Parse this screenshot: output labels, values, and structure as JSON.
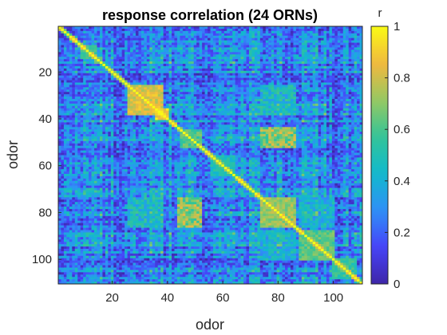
{
  "chart_data": {
    "type": "heatmap",
    "title": "response correlation (24 ORNs)",
    "xlabel": "odor",
    "ylabel": "odor",
    "n": 110,
    "x_ticks": [
      20,
      40,
      60,
      80,
      100
    ],
    "y_ticks": [
      20,
      40,
      60,
      80,
      100
    ],
    "colorbar": {
      "label": "r",
      "ticks": [
        0,
        0.2,
        0.4,
        0.6,
        0.8,
        1
      ],
      "range": [
        0,
        1
      ],
      "colormap": "parula",
      "colors": [
        "#3e26a8",
        "#4743f8",
        "#2f90f7",
        "#11b9cd",
        "#33c498",
        "#97c861",
        "#f2b83e",
        "#f9fb15"
      ]
    },
    "diagonal": 1,
    "blocks": [
      {
        "range": [
          26,
          38
        ],
        "r": 0.82
      },
      {
        "range": [
          36,
          40
        ],
        "r": 0.9
      },
      {
        "range": [
          74,
          86
        ],
        "r": 0.72
      },
      {
        "range": [
          88,
          100
        ],
        "r": 0.62
      },
      {
        "range": [
          100,
          108
        ],
        "r": 0.55
      },
      {
        "range": [
          9,
          14
        ],
        "r": 0.6
      },
      {
        "range": [
          45,
          52
        ],
        "r": 0.6
      },
      {
        "range": [
          56,
          64
        ],
        "r": 0.5
      }
    ],
    "off_blocks": [
      {
        "rows": [
          26,
          38
        ],
        "cols": [
          74,
          86
        ],
        "r": 0.45
      },
      {
        "rows": [
          44,
          52
        ],
        "cols": [
          74,
          86
        ],
        "r": 0.7
      },
      {
        "rows": [
          74,
          86
        ],
        "cols": [
          44,
          52
        ],
        "r": 0.55
      },
      {
        "rows": [
          88,
          100
        ],
        "cols": [
          74,
          86
        ],
        "r": 0.4
      }
    ],
    "background_r": 0.28
  }
}
